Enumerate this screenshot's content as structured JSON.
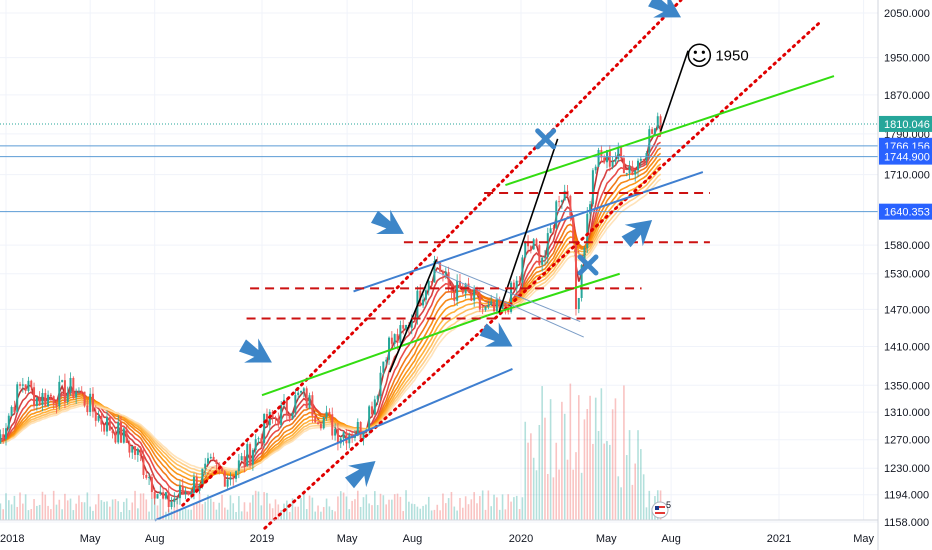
{
  "chart_data": {
    "type": "candlestick",
    "instrument_hint": "gold",
    "y_scale": "log",
    "ylim": [
      1150,
      2080
    ],
    "y_ticks": [
      "2050.000",
      "1950.000",
      "1870.000",
      "1790.000",
      "1710.000",
      "1580.000",
      "1530.000",
      "1470.000",
      "1410.000",
      "1350.000",
      "1310.000",
      "1270.000",
      "1230.000",
      "1194.000",
      "1158.000"
    ],
    "x_ticks": [
      {
        "label": "2018",
        "date": "2018-01-01"
      },
      {
        "label": "May",
        "date": "2018-05-01"
      },
      {
        "label": "Aug",
        "date": "2018-08-01"
      },
      {
        "label": "2019",
        "date": "2019-01-01"
      },
      {
        "label": "May",
        "date": "2019-05-01"
      },
      {
        "label": "Aug",
        "date": "2019-08-01"
      },
      {
        "label": "2020",
        "date": "2020-01-01"
      },
      {
        "label": "May",
        "date": "2020-05-01"
      },
      {
        "label": "Aug",
        "date": "2020-08-01"
      },
      {
        "label": "2021",
        "date": "2021-01-01"
      },
      {
        "label": "May",
        "date": "2021-05-01"
      }
    ],
    "price_markers": [
      {
        "label": "1810.046",
        "value": 1810.046,
        "color": "#26a69a",
        "style": "dotted"
      },
      {
        "label": "1766.156",
        "value": 1766.156,
        "color": "#2962ff",
        "style": "solid"
      },
      {
        "label": "1744.900",
        "value": 1744.9,
        "color": "#2962ff",
        "style": "solid"
      },
      {
        "label": "1640.353",
        "value": 1640.353,
        "color": "#2962ff",
        "style": "solid"
      }
    ],
    "price_path": [
      [
        "2017-12-20",
        1265
      ],
      [
        "2018-01-10",
        1320
      ],
      [
        "2018-01-25",
        1355
      ],
      [
        "2018-02-15",
        1330
      ],
      [
        "2018-03-10",
        1335
      ],
      [
        "2018-04-10",
        1345
      ],
      [
        "2018-05-15",
        1300
      ],
      [
        "2018-06-15",
        1275
      ],
      [
        "2018-07-10",
        1245
      ],
      [
        "2018-08-15",
        1180
      ],
      [
        "2018-09-15",
        1200
      ],
      [
        "2018-10-20",
        1230
      ],
      [
        "2018-11-15",
        1220
      ],
      [
        "2018-12-10",
        1245
      ],
      [
        "2019-01-05",
        1290
      ],
      [
        "2019-02-10",
        1320
      ],
      [
        "2019-02-25",
        1335
      ],
      [
        "2019-03-20",
        1310
      ],
      [
        "2019-04-20",
        1280
      ],
      [
        "2019-05-20",
        1285
      ],
      [
        "2019-06-10",
        1335
      ],
      [
        "2019-06-25",
        1410
      ],
      [
        "2019-07-20",
        1430
      ],
      [
        "2019-08-10",
        1490
      ],
      [
        "2019-09-04",
        1555
      ],
      [
        "2019-09-20",
        1505
      ],
      [
        "2019-10-15",
        1495
      ],
      [
        "2019-11-12",
        1465
      ],
      [
        "2019-12-05",
        1465
      ],
      [
        "2019-12-30",
        1520
      ],
      [
        "2020-01-08",
        1580
      ],
      [
        "2020-02-05",
        1560
      ],
      [
        "2020-02-24",
        1675
      ],
      [
        "2020-03-10",
        1680
      ],
      [
        "2020-03-19",
        1470
      ],
      [
        "2020-04-01",
        1600
      ],
      [
        "2020-04-15",
        1735
      ],
      [
        "2020-05-15",
        1745
      ],
      [
        "2020-06-10",
        1720
      ],
      [
        "2020-06-30",
        1785
      ],
      [
        "2020-07-17",
        1810
      ]
    ],
    "volume_spike_dates": [
      "2020-02-25",
      "2020-03-10",
      "2020-03-17",
      "2020-04-05",
      "2020-05-05"
    ],
    "drawings": [
      {
        "kind": "red-dotted",
        "p1": [
          "2018-09-10",
          1180
        ],
        "p2": [
          "2020-08-15",
          2080
        ]
      },
      {
        "kind": "red-dotted",
        "p1": [
          "2019-01-05",
          1150
        ],
        "p2": [
          "2021-03-01",
          2030
        ]
      },
      {
        "kind": "green",
        "p1": [
          "2019-01-01",
          1335
        ],
        "p2": [
          "2019-11-15",
          1460
        ]
      },
      {
        "kind": "green",
        "p1": [
          "2019-11-15",
          1460
        ],
        "p2": [
          "2020-05-20",
          1530
        ]
      },
      {
        "kind": "green",
        "p1": [
          "2019-12-10",
          1690
        ],
        "p2": [
          "2021-03-20",
          1910
        ]
      },
      {
        "kind": "blue",
        "p1": [
          "2018-08-01",
          1160
        ],
        "p2": [
          "2019-12-20",
          1375
        ]
      },
      {
        "kind": "blue",
        "p1": [
          "2019-05-10",
          1500
        ],
        "p2": [
          "2020-09-15",
          1715
        ]
      },
      {
        "kind": "blue-thin",
        "p1": [
          "2019-09-01",
          1550
        ],
        "p2": [
          "2020-03-25",
          1450
        ]
      },
      {
        "kind": "blue-thin",
        "p1": [
          "2019-09-01",
          1535
        ],
        "p2": [
          "2020-03-30",
          1425
        ]
      },
      {
        "kind": "black",
        "p1": [
          "2019-12-01",
          1465
        ],
        "p2": [
          "2020-02-22",
          1780
        ]
      },
      {
        "kind": "black",
        "p1": [
          "2020-07-17",
          1795
        ],
        "p2": [
          "2020-08-25",
          1965
        ]
      },
      {
        "kind": "black",
        "p1": [
          "2019-06-30",
          1370
        ],
        "p2": [
          "2019-09-04",
          1555
        ]
      },
      {
        "kind": "red-dashed",
        "p1": [
          "2019-11-10",
          1675
        ],
        "p2": [
          "2020-09-25",
          1675
        ]
      },
      {
        "kind": "red-dashed",
        "p1": [
          "2019-07-20",
          1585
        ],
        "p2": [
          "2020-09-25",
          1585
        ]
      },
      {
        "kind": "red-dashed",
        "p1": [
          "2018-12-15",
          1505
        ],
        "p2": [
          "2020-06-20",
          1505
        ]
      },
      {
        "kind": "red-dashed",
        "p1": [
          "2018-12-10",
          1455
        ],
        "p2": [
          "2020-06-25",
          1455
        ]
      }
    ],
    "arrows": [
      {
        "at": [
          "2019-01-15",
          1385
        ],
        "dir": "down-right"
      },
      {
        "at": [
          "2019-07-20",
          1600
        ],
        "dir": "down-right"
      },
      {
        "at": [
          "2019-12-20",
          1410
        ],
        "dir": "down-right"
      },
      {
        "at": [
          "2019-06-10",
          1240
        ],
        "dir": "up-right"
      },
      {
        "at": [
          "2020-07-05",
          1625
        ],
        "dir": "up-right"
      },
      {
        "at": [
          "2020-08-15",
          2040
        ],
        "dir": "down-right"
      }
    ],
    "crosses": [
      {
        "at": [
          "2020-02-05",
          1780
        ]
      },
      {
        "at": [
          "2020-04-05",
          1545
        ]
      }
    ],
    "target_label": {
      "at": [
        "2020-09-10",
        1955
      ],
      "text": "1950",
      "icon": "smiley"
    }
  },
  "colors": {
    "grid": "#f0f3fa",
    "red": "#e00000",
    "green": "#33dd11",
    "blue": "#3f7fd0",
    "badge": "#2962ff",
    "badge_teal": "#26a69a",
    "arrow": "#3d86c8"
  }
}
